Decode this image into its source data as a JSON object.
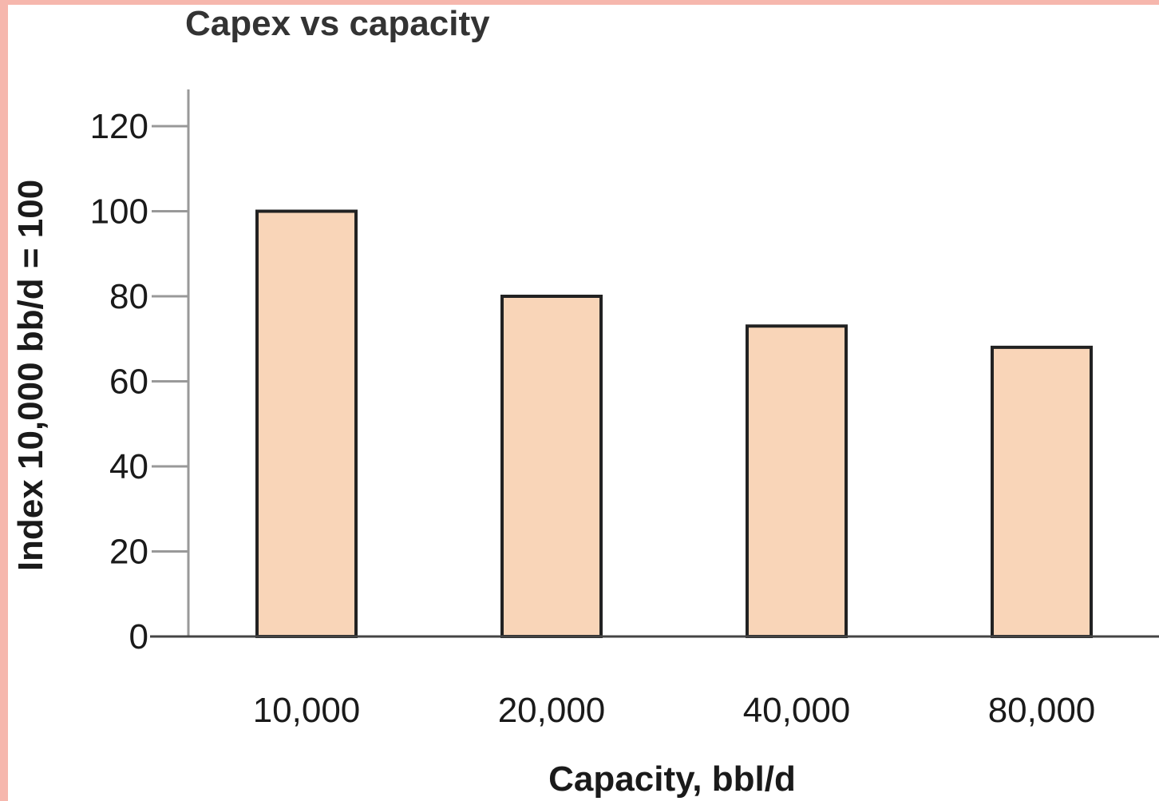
{
  "chart_data": {
    "type": "bar",
    "title": "Capex vs capacity",
    "xlabel": "Capacity, bbl/d",
    "ylabel": "Index 10,000 bb/d = 100",
    "categories": [
      "10,000",
      "20,000",
      "40,000",
      "80,000"
    ],
    "values": [
      100,
      80,
      73,
      68
    ],
    "ylim": [
      0,
      120
    ],
    "yticks": [
      0,
      20,
      40,
      60,
      80,
      100,
      120
    ],
    "grid": false,
    "colors": {
      "bar_fill": "#f9d5b8",
      "bar_stroke": "#222222",
      "axis": "#999999",
      "baseline": "#444444",
      "frame": "#f6b7ad"
    }
  }
}
